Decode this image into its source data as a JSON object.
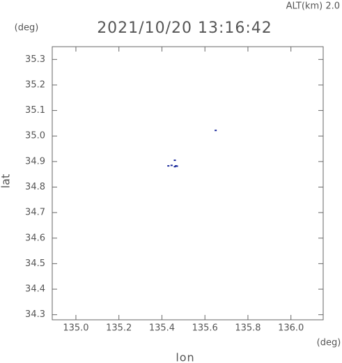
{
  "chart_data": {
    "type": "scatter",
    "title": "2021/10/20 13:16:42",
    "annotation": "ALT(km) 2.0",
    "y_unit": "(deg)",
    "x_unit": "(deg)",
    "xlabel": "lon",
    "ylabel": "lat",
    "xlim": [
      134.89,
      136.15
    ],
    "ylim": [
      34.28,
      35.35
    ],
    "xticks": [
      {
        "value": 135.0,
        "label": "135.0"
      },
      135.2,
      135.4,
      135.6,
      135.8,
      {
        "value": 136.0,
        "label": "136.0"
      }
    ],
    "yticks": [
      34.3,
      34.4,
      34.5,
      34.6,
      34.7,
      34.8,
      34.9,
      {
        "value": 35.0,
        "label": "35.0"
      },
      35.1,
      35.2,
      35.3
    ],
    "grid": false,
    "series": [
      {
        "color": "#1a2a9c",
        "x": [
          135.43,
          135.445,
          135.46,
          135.465,
          135.47,
          135.46,
          135.65
        ],
        "values": [
          34.883,
          34.885,
          34.88,
          34.883,
          34.882,
          34.905,
          35.022
        ]
      }
    ]
  }
}
